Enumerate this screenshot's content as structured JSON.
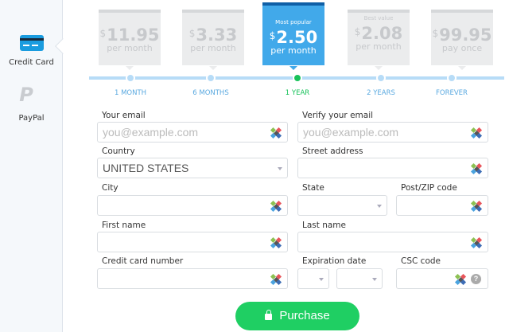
{
  "sidebar": {
    "items": [
      {
        "label": "Credit Card",
        "icon": "credit-card-icon",
        "active": true
      },
      {
        "label": "PayPal",
        "icon": "paypal-icon",
        "active": false
      }
    ]
  },
  "plans": [
    {
      "tag": "",
      "currency": "$",
      "price": "11.95",
      "period": "per month",
      "label": "1 MONTH"
    },
    {
      "tag": "",
      "currency": "$",
      "price": "3.33",
      "period": "per month",
      "label": "6 MONTHS"
    },
    {
      "tag": "Most popular",
      "currency": "$",
      "price": "2.50",
      "period": "per month",
      "label": "1 YEAR",
      "selected": true
    },
    {
      "tag": "Best value",
      "currency": "$",
      "price": "2.08",
      "period": "per month",
      "label": "2 YEARS"
    },
    {
      "tag": "",
      "currency": "$",
      "price": "99.95",
      "period": "pay once",
      "label": "FOREVER"
    }
  ],
  "form": {
    "email": {
      "label": "Your email",
      "placeholder": "you@example.com"
    },
    "verify_email": {
      "label": "Verify your email",
      "placeholder": "you@example.com"
    },
    "country": {
      "label": "Country",
      "value": "UNITED STATES"
    },
    "street": {
      "label": "Street address",
      "value": ""
    },
    "city": {
      "label": "City",
      "value": ""
    },
    "state": {
      "label": "State",
      "value": ""
    },
    "zip": {
      "label": "Post/ZIP code",
      "value": ""
    },
    "first_name": {
      "label": "First name",
      "value": ""
    },
    "last_name": {
      "label": "Last name",
      "value": ""
    },
    "card_number": {
      "label": "Credit card number",
      "value": ""
    },
    "expiration": {
      "label": "Expiration date",
      "month": "",
      "year": ""
    },
    "csc": {
      "label": "CSC code",
      "value": "",
      "help": "?"
    }
  },
  "purchase_label": "Purchase",
  "colors": {
    "accent": "#41a9ea",
    "selected": "#18c25a",
    "button": "#1fcf63"
  }
}
